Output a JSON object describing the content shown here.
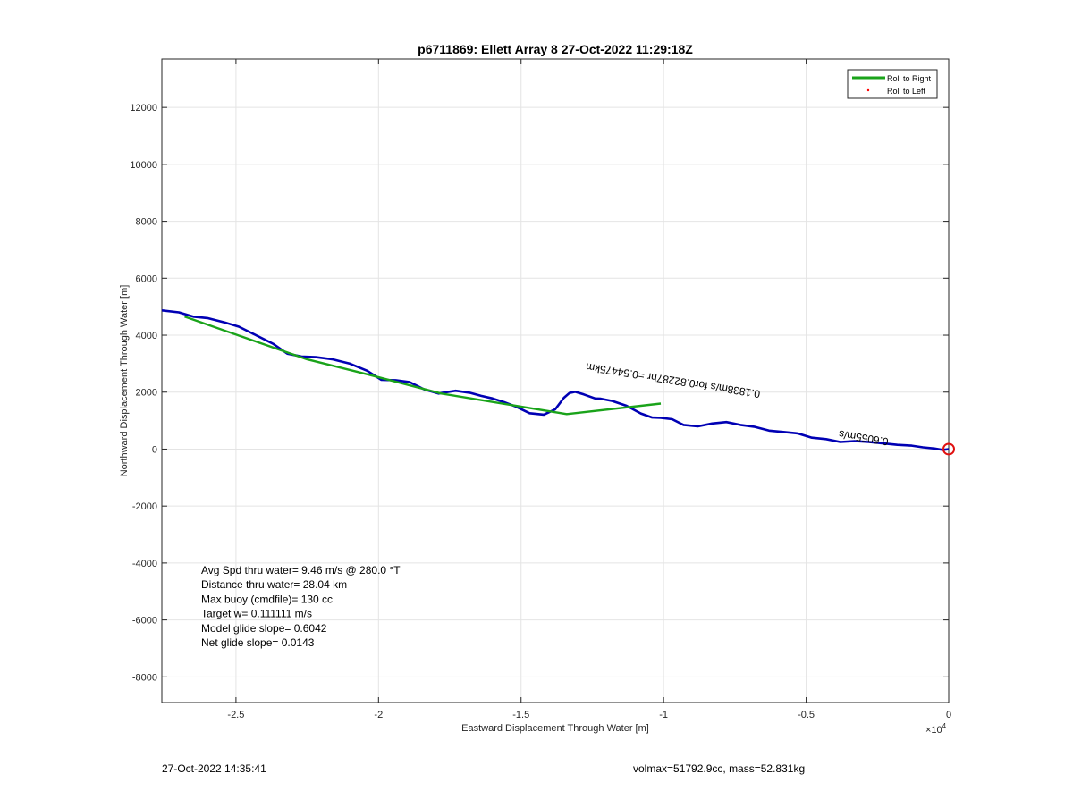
{
  "chart_data": {
    "type": "line",
    "title": "p6711869: Ellett Array 8 27-Oct-2022 11:29:18Z",
    "xlabel": "Eastward Displacement Through Water [m]",
    "ylabel": "Northward Displacement Through Water [m]",
    "x_exponent_label": "×10",
    "x_exponent_power": "4",
    "xlim": [
      -27600,
      0
    ],
    "ylim": [
      -8900,
      13700
    ],
    "xticks": [
      -25000,
      -20000,
      -15000,
      -10000,
      -5000,
      0
    ],
    "xtick_labels": [
      "-2.5",
      "-2",
      "-1.5",
      "-1",
      "-0.5",
      "0"
    ],
    "yticks": [
      -8000,
      -6000,
      -4000,
      -2000,
      0,
      2000,
      4000,
      6000,
      8000,
      10000,
      12000
    ],
    "ytick_labels": [
      "-8000",
      "-6000",
      "-4000",
      "-2000",
      "0",
      "2000",
      "4000",
      "6000",
      "8000",
      "10000",
      "12000"
    ],
    "grid": true,
    "legend_placement": "top-right",
    "legend": [
      {
        "label": "Roll to Right",
        "color": "#1aa31a",
        "style": "line"
      },
      {
        "label": "Roll to Left",
        "color": "#ff0000",
        "style": "dot"
      }
    ],
    "series": [
      {
        "name": "track",
        "color": "#0000b4",
        "x": [
          -27600,
          -27000,
          -26500,
          -26000,
          -25400,
          -24900,
          -24300,
          -23700,
          -23200,
          -22700,
          -22200,
          -21600,
          -21000,
          -20400,
          -19900,
          -19400,
          -18900,
          -18400,
          -17900,
          -17600,
          -17300,
          -16800,
          -16400,
          -16000,
          -15600,
          -15200,
          -14700,
          -14200,
          -13800,
          -13500,
          -13300,
          -13100,
          -12800,
          -12400,
          -12200,
          -11800,
          -11300,
          -10800,
          -10400,
          -10100,
          -9700,
          -9300,
          -8800,
          -8300,
          -7800,
          -7300,
          -6800,
          -6300,
          -5800,
          -5300,
          -4800,
          -4300,
          -3800,
          -3300,
          -2800,
          -2300,
          -1800,
          -1300,
          -900,
          -500,
          -200,
          0
        ],
        "y": [
          4870,
          4800,
          4650,
          4600,
          4450,
          4300,
          4000,
          3700,
          3350,
          3250,
          3230,
          3150,
          3000,
          2750,
          2430,
          2420,
          2350,
          2100,
          1950,
          2000,
          2050,
          1980,
          1870,
          1780,
          1650,
          1500,
          1260,
          1210,
          1400,
          1800,
          1970,
          2010,
          1920,
          1780,
          1770,
          1690,
          1520,
          1250,
          1110,
          1100,
          1050,
          850,
          800,
          900,
          950,
          850,
          780,
          650,
          600,
          550,
          400,
          350,
          250,
          280,
          250,
          200,
          150,
          120,
          60,
          20,
          -30,
          0
        ]
      },
      {
        "name": "Roll to Right",
        "color": "#1aa31a",
        "x": [
          -26800,
          -22500,
          -20300,
          -17800,
          -13400,
          -10100
        ],
        "y": [
          4650,
          3150,
          2600,
          1950,
          1230,
          1600
        ]
      }
    ],
    "end_marker": {
      "x": 0,
      "y": 0,
      "color": "#e01010"
    },
    "annotation_rotated": {
      "text": "0.1838m/s for0.82287hr =0.54475km",
      "x": -6600,
      "y": 2050,
      "angle_deg": 189
    },
    "annotation_overlap": {
      "text": "0.6055m/s",
      "x": -2100,
      "y": 380,
      "angle_deg": 189
    },
    "stats_lines": [
      "Avg Spd thru water=  9.46 m/s @ 280.0 °T",
      "Distance thru water= 28.04 km",
      "Max buoy (cmdfile)= 130 cc",
      "Target w= 0.111111 m/s",
      "Model glide slope= 0.6042",
      "Net glide slope= 0.0143"
    ]
  },
  "footer": {
    "timestamp": "27-Oct-2022 14:35:41",
    "right_info": "volmax=51792.9cc, mass=52.831kg"
  }
}
